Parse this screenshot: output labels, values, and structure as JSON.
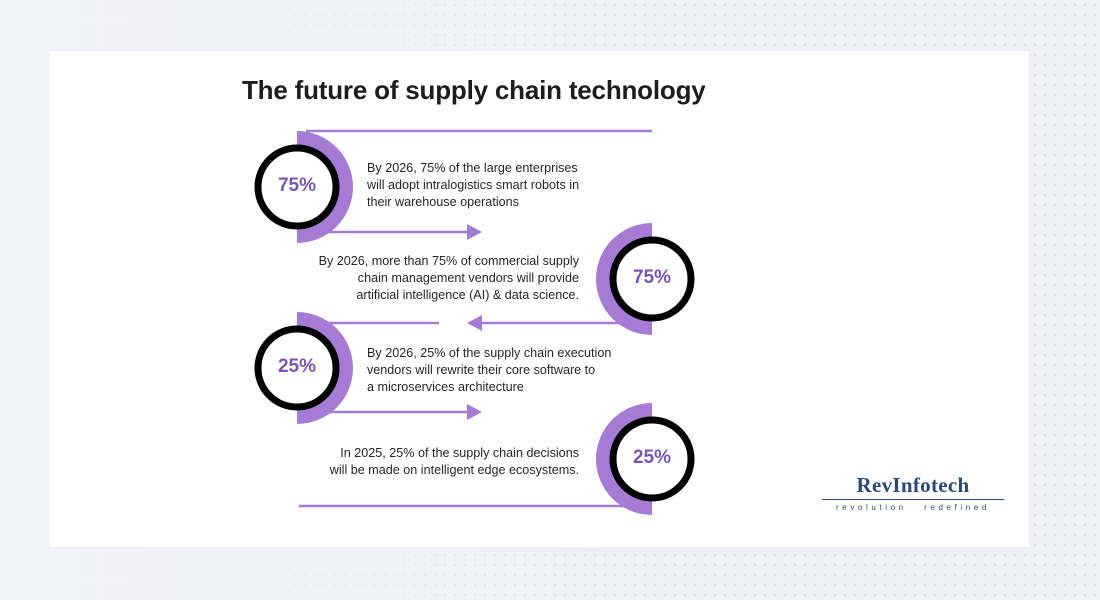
{
  "title": "The future of supply chain technology",
  "colors": {
    "accent": "#a57bd6",
    "accent_dark": "#7a55b3",
    "ring": "#000000",
    "brand": "#2c4a78"
  },
  "stats": [
    {
      "percent": "75%",
      "lines": [
        "By 2026, 75% of the large enterprises",
        "will adopt intralogistics smart robots in",
        "their warehouse operations"
      ]
    },
    {
      "percent": "75%",
      "lines": [
        "By 2026, more than 75% of commercial supply",
        "chain management vendors will provide",
        "artificial intelligence (AI) & data science."
      ]
    },
    {
      "percent": "25%",
      "lines": [
        "By 2026, 25% of the supply chain execution",
        "vendors will rewrite their core software to",
        "a microservices architecture"
      ]
    },
    {
      "percent": "25%",
      "lines": [
        "In 2025, 25% of the supply chain decisions",
        "will be made on intelligent edge ecosystems."
      ]
    }
  ],
  "logo": {
    "name": "RevInfotech",
    "tagline": "revolution   redefined"
  }
}
